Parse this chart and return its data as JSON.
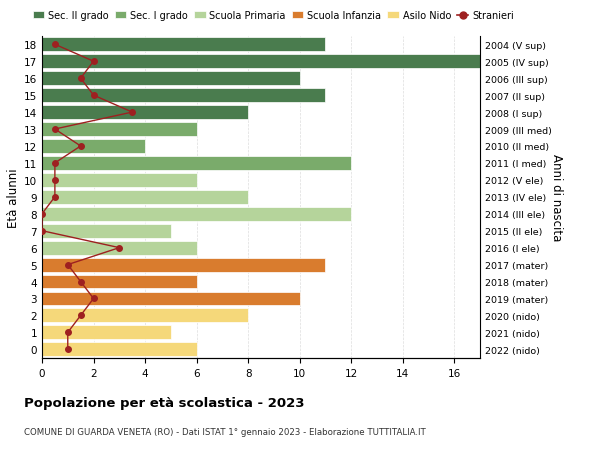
{
  "ages": [
    18,
    17,
    16,
    15,
    14,
    13,
    12,
    11,
    10,
    9,
    8,
    7,
    6,
    5,
    4,
    3,
    2,
    1,
    0
  ],
  "years": [
    "2004 (V sup)",
    "2005 (IV sup)",
    "2006 (III sup)",
    "2007 (II sup)",
    "2008 (I sup)",
    "2009 (III med)",
    "2010 (II med)",
    "2011 (I med)",
    "2012 (V ele)",
    "2013 (IV ele)",
    "2014 (III ele)",
    "2015 (II ele)",
    "2016 (I ele)",
    "2017 (mater)",
    "2018 (mater)",
    "2019 (mater)",
    "2020 (nido)",
    "2021 (nido)",
    "2022 (nido)"
  ],
  "bar_values": [
    11,
    17,
    10,
    11,
    8,
    6,
    4,
    12,
    6,
    8,
    12,
    5,
    6,
    11,
    6,
    10,
    8,
    5,
    6
  ],
  "bar_colors": [
    "#4a7c4e",
    "#4a7c4e",
    "#4a7c4e",
    "#4a7c4e",
    "#4a7c4e",
    "#7aab6b",
    "#7aab6b",
    "#7aab6b",
    "#b5d49b",
    "#b5d49b",
    "#b5d49b",
    "#b5d49b",
    "#b5d49b",
    "#d97c2e",
    "#d97c2e",
    "#d97c2e",
    "#f5d87a",
    "#f5d87a",
    "#f5d87a"
  ],
  "stranieri_values": [
    0.5,
    2,
    1.5,
    2,
    3.5,
    0.5,
    1.5,
    0.5,
    0.5,
    0.5,
    0,
    0,
    3,
    1,
    1.5,
    2,
    1.5,
    1,
    1
  ],
  "stranieri_color": "#9e2020",
  "legend_labels": [
    "Sec. II grado",
    "Sec. I grado",
    "Scuola Primaria",
    "Scuola Infanzia",
    "Asilo Nido",
    "Stranieri"
  ],
  "legend_colors": [
    "#4a7c4e",
    "#7aab6b",
    "#b5d49b",
    "#d97c2e",
    "#f5d87a",
    "#9e2020"
  ],
  "ylabel_left": "Età alunni",
  "ylabel_right": "Anni di nascita",
  "title": "Popolazione per età scolastica - 2023",
  "subtitle": "COMUNE DI GUARDA VENETA (RO) - Dati ISTAT 1° gennaio 2023 - Elaborazione TUTTITALIA.IT",
  "xlim": [
    0,
    17
  ],
  "xticks": [
    0,
    2,
    4,
    6,
    8,
    10,
    12,
    14,
    16
  ],
  "bg_color": "#ffffff",
  "grid_color": "#dddddd"
}
